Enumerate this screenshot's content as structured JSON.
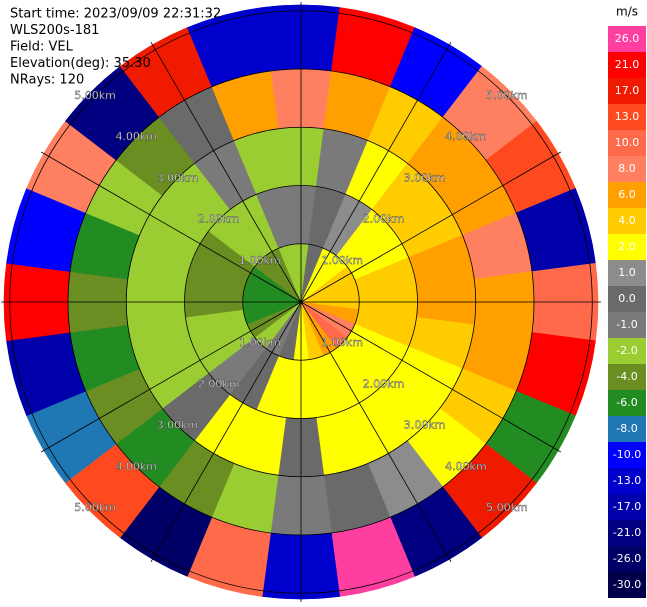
{
  "chart_data": {
    "type": "ppi",
    "info_lines": [
      "Start time: 2023/09/09 22:31:32",
      "WLS200s-181",
      "Field: VEL",
      "Elevation(deg): 35.30",
      "NRays: 120"
    ],
    "azimuths": [
      0,
      15,
      30,
      45,
      60,
      75,
      90,
      105,
      120,
      135,
      150,
      165,
      180,
      195,
      210,
      225,
      240,
      255,
      270,
      285,
      300,
      315,
      330,
      345
    ],
    "range_edges": [
      0,
      1,
      2,
      3,
      4,
      5.1
    ],
    "rlim": [
      0,
      5.15
    ],
    "values": [
      [
        -2,
        -1,
        -2,
        8,
        -13
      ],
      [
        0,
        0,
        -1,
        6,
        21
      ],
      [
        2,
        1,
        2,
        4,
        -10
      ],
      [
        2,
        2,
        4,
        6,
        8
      ],
      [
        4,
        2,
        4,
        6,
        13
      ],
      [
        4,
        4,
        6,
        8,
        -17
      ],
      [
        4,
        4,
        6,
        6,
        10
      ],
      [
        6,
        4,
        4,
        6,
        21
      ],
      [
        8,
        2,
        2,
        4,
        -6
      ],
      [
        10,
        2,
        2,
        2,
        17
      ],
      [
        6,
        2,
        2,
        1,
        -21
      ],
      [
        4,
        2,
        2,
        0,
        26
      ],
      [
        2,
        2,
        0,
        -1,
        -13
      ],
      [
        0,
        2,
        2,
        -2,
        10
      ],
      [
        -1,
        0,
        2,
        -4,
        -26
      ],
      [
        -2,
        -1,
        0,
        -6,
        13
      ],
      [
        -4,
        -2,
        -2,
        -4,
        -8
      ],
      [
        -6,
        -2,
        -2,
        -6,
        -17
      ],
      [
        -6,
        -4,
        -2,
        -4,
        21
      ],
      [
        -6,
        -4,
        -2,
        -6,
        -10
      ],
      [
        -6,
        -4,
        -2,
        -2,
        8
      ],
      [
        -4,
        -2,
        -2,
        -4,
        -21
      ],
      [
        -4,
        -2,
        -1,
        0,
        17
      ],
      [
        -2,
        -1,
        -2,
        6,
        -13
      ]
    ],
    "rings": [
      {
        "value": 1,
        "label": "1.00km"
      },
      {
        "value": 2,
        "label": "2.00km"
      },
      {
        "value": 3,
        "label": "3.00km"
      },
      {
        "value": 4,
        "label": "4.00km"
      },
      {
        "value": 5,
        "label": "5.00km"
      }
    ],
    "spokes": [
      0,
      30,
      60,
      90,
      120,
      150,
      180,
      210,
      240,
      270,
      300,
      330
    ],
    "colorbar": {
      "label": "m/s",
      "bins": [
        {
          "value": 26,
          "label": "26.0",
          "color": "#ff3fa0"
        },
        {
          "value": 21,
          "label": "21.0",
          "color": "#ff0000"
        },
        {
          "value": 17,
          "label": "17.0",
          "color": "#f01a00"
        },
        {
          "value": 13,
          "label": "13.0",
          "color": "#ff4a20"
        },
        {
          "value": 10,
          "label": "10.0",
          "color": "#ff6a4a"
        },
        {
          "value": 8,
          "label": "8.0",
          "color": "#ff8060"
        },
        {
          "value": 6,
          "label": "6.0",
          "color": "#ffa000"
        },
        {
          "value": 4,
          "label": "4.0",
          "color": "#ffcc00"
        },
        {
          "value": 2,
          "label": "2.0",
          "color": "#ffff00"
        },
        {
          "value": 1,
          "label": "1.0",
          "color": "#8c8c8c"
        },
        {
          "value": 0,
          "label": "0.0",
          "color": "#6a6a6a"
        },
        {
          "value": -1,
          "label": "-1.0",
          "color": "#7a7a7a"
        },
        {
          "value": -2,
          "label": "-2.0",
          "color": "#9acd32"
        },
        {
          "value": -4,
          "label": "-4.0",
          "color": "#6b8e23"
        },
        {
          "value": -6,
          "label": "-6.0",
          "color": "#228b22"
        },
        {
          "value": -8,
          "label": "-8.0",
          "color": "#1f77b4"
        },
        {
          "value": -10,
          "label": "-10.0",
          "color": "#0000ff"
        },
        {
          "value": -13,
          "label": "-13.0",
          "color": "#0000cd"
        },
        {
          "value": -17,
          "label": "-17.0",
          "color": "#0000aa"
        },
        {
          "value": -21,
          "label": "-21.0",
          "color": "#000080"
        },
        {
          "value": -26,
          "label": "-26.0",
          "color": "#000066"
        },
        {
          "value": -30,
          "label": "-30.0",
          "color": "#000048"
        }
      ]
    }
  }
}
